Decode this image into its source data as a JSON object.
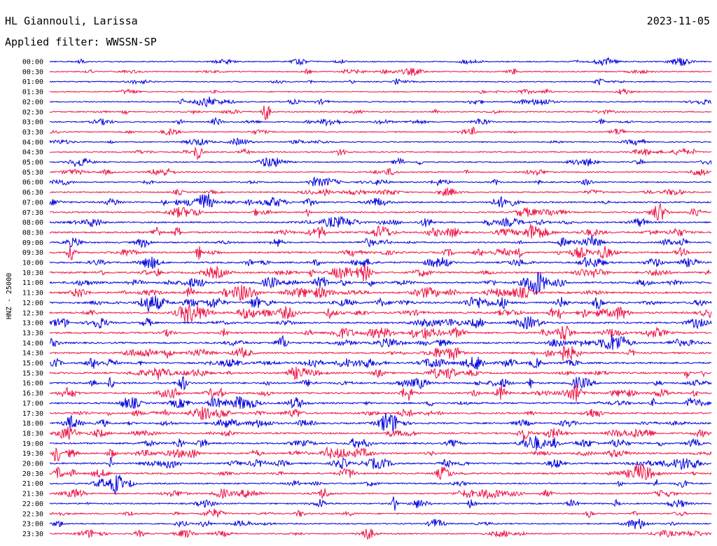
{
  "header": {
    "station": "HL Giannouli, Larissa",
    "filter": "Applied filter: WWSSN-SP",
    "date": "2023-11-05"
  },
  "chart_data": {
    "type": "line",
    "title": "HL Giannouli, Larissa",
    "subtitle": "Applied filter: WWSSN-SP",
    "ylabel": "HNZ - 25000",
    "date": "2023-11-05",
    "trace_colors": [
      "#0000dd",
      "#ee1144"
    ],
    "row_labels": [
      "00:00",
      "00:30",
      "01:00",
      "01:30",
      "02:00",
      "02:30",
      "03:00",
      "03:30",
      "04:00",
      "04:30",
      "05:00",
      "05:30",
      "06:00",
      "06:30",
      "07:00",
      "07:30",
      "08:00",
      "08:30",
      "09:00",
      "09:30",
      "10:00",
      "10:30",
      "11:00",
      "11:30",
      "12:00",
      "12:30",
      "13:00",
      "13:30",
      "14:00",
      "14:30",
      "15:00",
      "15:30",
      "16:00",
      "16:30",
      "17:00",
      "17:30",
      "18:00",
      "18:30",
      "19:00",
      "19:30",
      "20:00",
      "20:30",
      "21:00",
      "21:30",
      "22:00",
      "22:30",
      "23:00",
      "23:30"
    ],
    "activity_level": [
      0.25,
      0.25,
      0.2,
      0.2,
      0.25,
      0.2,
      0.3,
      0.2,
      0.25,
      0.25,
      0.3,
      0.3,
      0.3,
      0.35,
      0.55,
      0.45,
      0.5,
      0.65,
      0.45,
      0.6,
      0.55,
      0.65,
      0.7,
      0.7,
      0.75,
      0.75,
      0.6,
      0.65,
      0.6,
      0.6,
      0.65,
      0.65,
      0.65,
      0.65,
      0.65,
      0.6,
      0.6,
      0.6,
      0.6,
      0.6,
      0.6,
      0.55,
      0.45,
      0.45,
      0.35,
      0.35,
      0.3,
      0.3
    ]
  }
}
